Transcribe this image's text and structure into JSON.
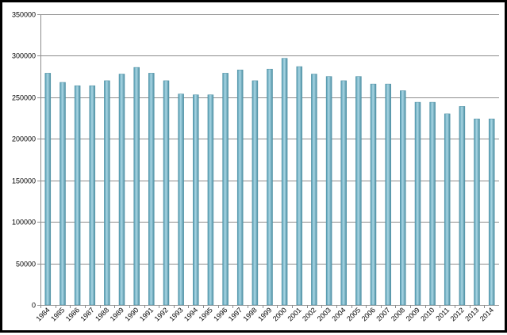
{
  "chart_data": {
    "type": "bar",
    "title": "",
    "xlabel": "",
    "ylabel": "",
    "ylim": [
      0,
      350000
    ],
    "yticks": [
      0,
      50000,
      100000,
      150000,
      200000,
      250000,
      300000,
      350000
    ],
    "grid": "horizontal",
    "legend": "none",
    "bar_color": "#6fb3c9",
    "categories": [
      "1984",
      "1985",
      "1986",
      "1987",
      "1988",
      "1989",
      "1990",
      "1991",
      "1992",
      "1993",
      "1994",
      "1995",
      "1996",
      "1997",
      "1998",
      "1999",
      "2000",
      "2001",
      "2002",
      "2003",
      "2004",
      "2005",
      "2006",
      "2007",
      "2008",
      "2009",
      "2010",
      "2011",
      "2012",
      "2013",
      "2014"
    ],
    "values": [
      279000,
      268000,
      264000,
      264000,
      270000,
      278000,
      286000,
      279000,
      270000,
      254000,
      253000,
      253000,
      279000,
      283000,
      270000,
      284000,
      297000,
      287000,
      278000,
      275000,
      270000,
      275000,
      266000,
      266000,
      258000,
      244000,
      244000,
      230000,
      239000,
      224000,
      224000
    ]
  }
}
